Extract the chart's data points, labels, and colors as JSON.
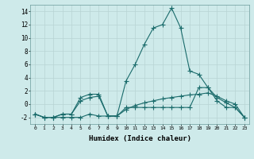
{
  "xlabel": "Humidex (Indice chaleur)",
  "x_values": [
    0,
    1,
    2,
    3,
    4,
    5,
    6,
    7,
    8,
    9,
    10,
    11,
    12,
    13,
    14,
    15,
    16,
    17,
    18,
    19,
    20,
    21,
    22,
    23
  ],
  "line1": [
    -1.5,
    -2,
    -2,
    -1.5,
    -1.5,
    1,
    1.5,
    1.5,
    -1.8,
    -1.8,
    -0.5,
    -0.5,
    -0.5,
    -0.5,
    -0.5,
    -0.5,
    -0.5,
    -0.5,
    2.5,
    2.5,
    1,
    0.2,
    -0.5,
    -2
  ],
  "line2": [
    -1.5,
    -2,
    -2,
    -2,
    -2,
    -2,
    -1.5,
    -1.8,
    -1.8,
    -1.8,
    -0.8,
    -0.2,
    0.2,
    0.5,
    0.8,
    1.0,
    1.2,
    1.4,
    1.5,
    1.7,
    1.2,
    0.5,
    0,
    -2
  ],
  "line3": [
    -1.5,
    -2,
    -2,
    -1.5,
    -1.5,
    0.5,
    1,
    1.2,
    -1.8,
    -1.8,
    3.5,
    6,
    9,
    11.5,
    12,
    14.5,
    11.5,
    5,
    4.5,
    2.5,
    0.5,
    -0.5,
    -0.5,
    -2
  ],
  "color": "#1a6b6b",
  "bg_color": "#ceeaea",
  "grid_color_major": "#b8d4d4",
  "grid_color_minor": "#cde4e4",
  "ylim": [
    -3,
    15
  ],
  "yticks": [
    -2,
    0,
    2,
    4,
    6,
    8,
    10,
    12,
    14
  ],
  "figsize": [
    3.2,
    2.0
  ],
  "dpi": 100
}
